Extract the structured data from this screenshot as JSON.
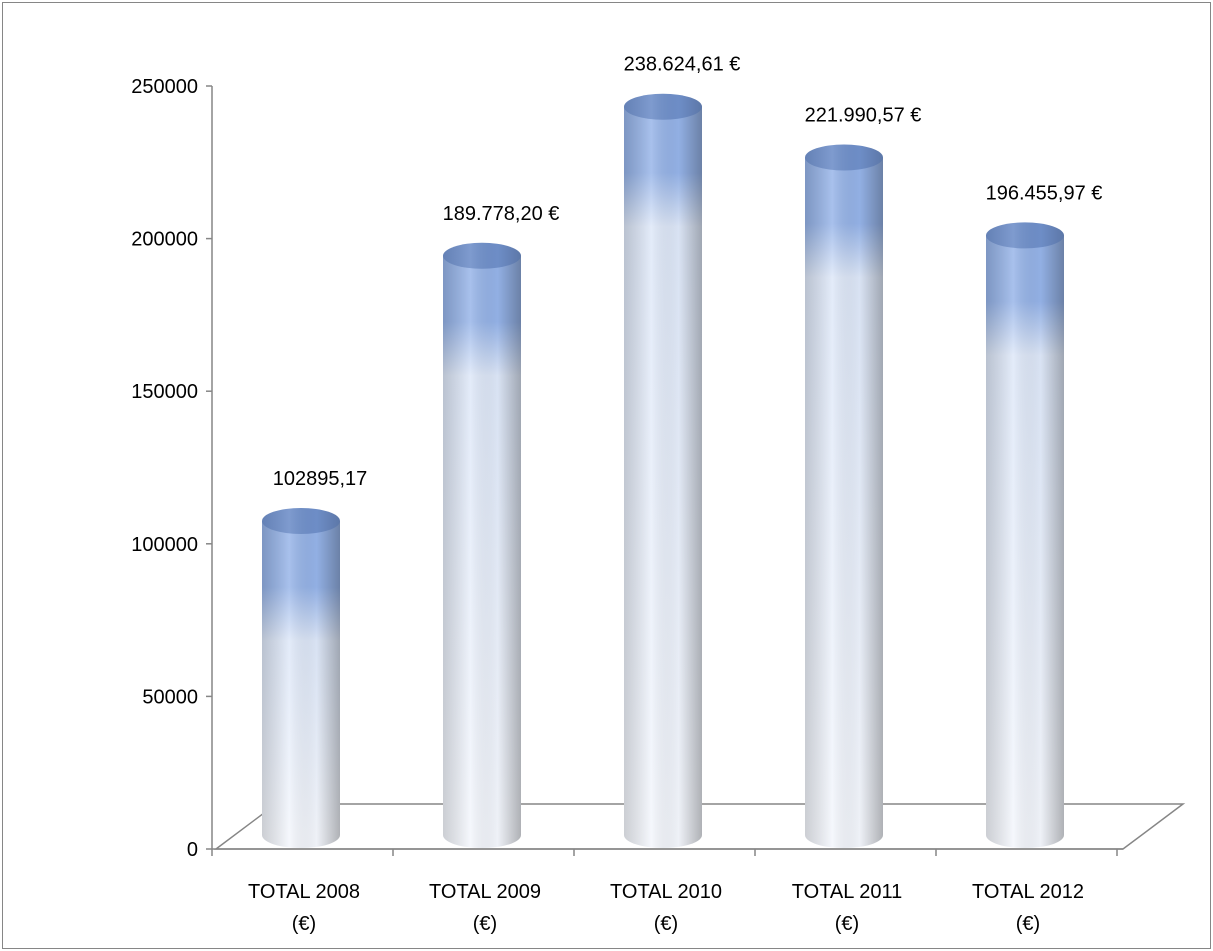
{
  "chart_data": {
    "type": "bar",
    "style": "3d-cylinder",
    "title": "",
    "xlabel": "",
    "ylabel": "",
    "ylim": [
      0,
      250000
    ],
    "yticks": [
      "0",
      "50000",
      "100000",
      "150000",
      "200000",
      "250000"
    ],
    "grid": false,
    "categories": [
      {
        "line1": "TOTAL 2008",
        "line2": "(€)"
      },
      {
        "line1": "TOTAL 2009",
        "line2": "(€)"
      },
      {
        "line1": "TOTAL 2010",
        "line2": "(€)"
      },
      {
        "line1": "TOTAL 2011",
        "line2": "(€)"
      },
      {
        "line1": "TOTAL 2012",
        "line2": "(€)"
      }
    ],
    "values": [
      102895.17,
      189778.2,
      238624.61,
      221990.57,
      196455.97
    ],
    "data_labels": [
      "102895,17",
      "189.778,20 €",
      "238.624,61 €",
      "221.990,57 €",
      "196.455,97 €"
    ],
    "colors": {
      "bar_top": "#6f8fc9",
      "bar_upper": "#95b3e8",
      "bar_lower": "#dde7f8",
      "axis": "#868686"
    }
  }
}
